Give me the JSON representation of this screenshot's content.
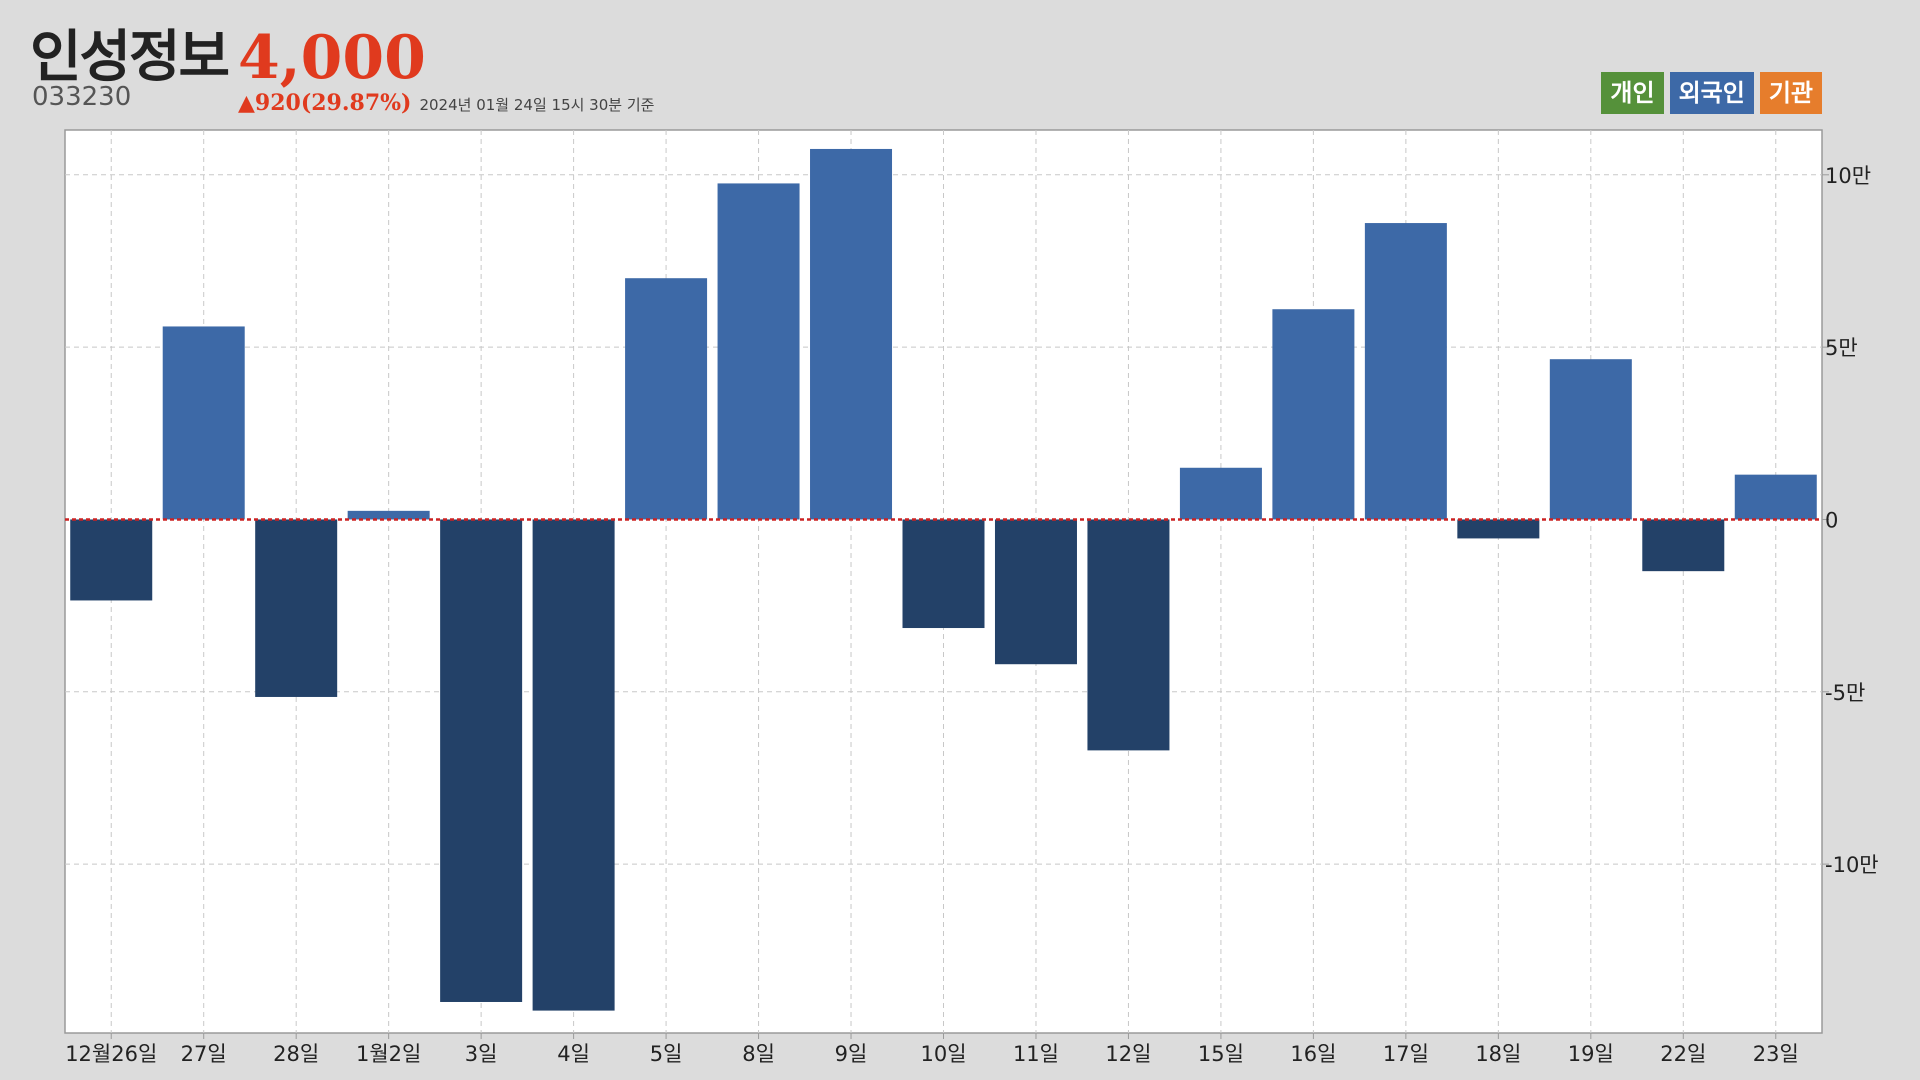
{
  "header": {
    "stock_name": "인성정보",
    "price": "4,000",
    "code": "033230",
    "change_arrow": "▲",
    "change_text": "920(29.87%)",
    "as_of": "2024년 01월 24일 15시 30분 기준"
  },
  "legend": [
    {
      "label": "개인",
      "color": "#55913a",
      "name": "legend-individual"
    },
    {
      "label": "외국인",
      "color": "#3d69a7",
      "name": "legend-foreigner"
    },
    {
      "label": "기관",
      "color": "#e67d2c",
      "name": "legend-institution"
    }
  ],
  "colors": {
    "positive": "#3d69a7",
    "negative": "#234168",
    "zero_line": "#cc2222",
    "grid": "#c8c8c8",
    "plot_bg": "#ffffff"
  },
  "chart_data": {
    "type": "bar",
    "series": [
      {
        "name": "외국인",
        "values": [
          -23500,
          56000,
          -51500,
          2500,
          -140000,
          -142500,
          70000,
          97500,
          107500,
          -31500,
          -42000,
          -67000,
          15000,
          61000,
          86000,
          -5500,
          46500,
          -15000,
          13000
        ]
      }
    ],
    "categories": [
      "12월26일",
      "27일",
      "28일",
      "1월2일",
      "3일",
      "4일",
      "5일",
      "8일",
      "9일",
      "10일",
      "11일",
      "12일",
      "15일",
      "16일",
      "17일",
      "18일",
      "19일",
      "22일",
      "23일"
    ],
    "ylim": [
      -149000,
      113000
    ],
    "y_ticks": [
      {
        "value": 100000,
        "label": "10만"
      },
      {
        "value": 50000,
        "label": "5만"
      },
      {
        "value": 0,
        "label": "0"
      },
      {
        "value": -50000,
        "label": "-5만"
      },
      {
        "value": -100000,
        "label": "-10만"
      }
    ],
    "grid": true
  }
}
